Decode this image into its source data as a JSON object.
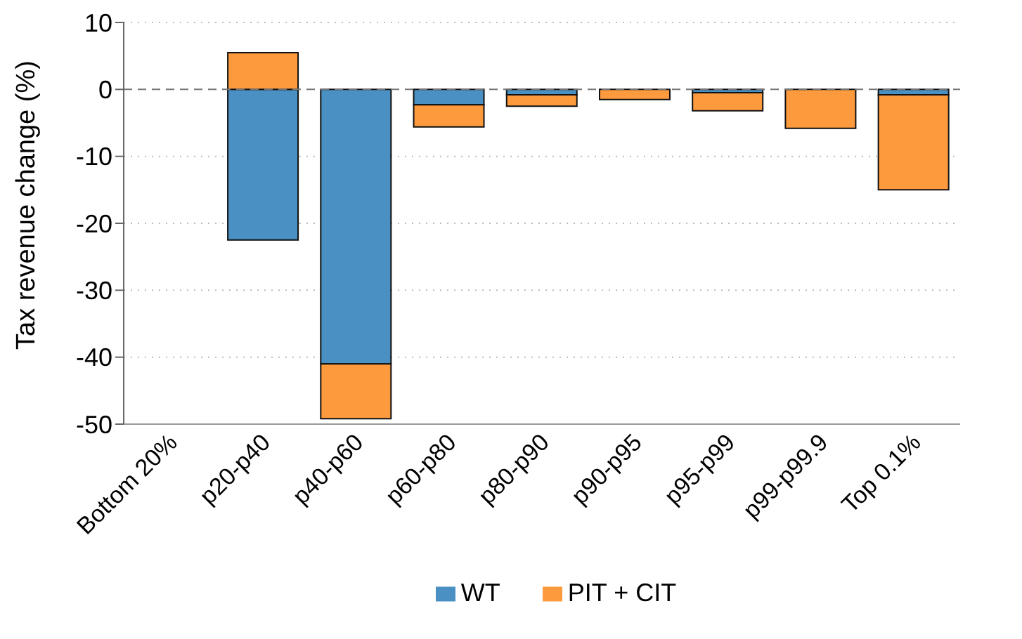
{
  "chart_data": {
    "type": "bar",
    "stacked": true,
    "ylabel": "Tax revenue change (%)",
    "categories": [
      "Bottom 20%",
      "p20-p40",
      "p40-p60",
      "p60-p80",
      "p80-p90",
      "p90-p95",
      "p95-p99",
      "p99-p99.9",
      "Top 0.1%"
    ],
    "series": [
      {
        "name": "WT",
        "color": "#4a90c2",
        "values": [
          null,
          -22.5,
          -41,
          -2.3,
          -0.8,
          null,
          -0.5,
          null,
          -0.8
        ]
      },
      {
        "name": "PIT + CIT",
        "color": "#fd9a3e",
        "values": [
          null,
          5.5,
          -8.2,
          -3.3,
          -1.7,
          -1.5,
          -2.7,
          -5.8,
          -14.2
        ]
      }
    ],
    "ylim": [
      -50,
      10
    ],
    "yticks": [
      -50,
      -40,
      -30,
      -20,
      -10,
      0,
      10
    ],
    "grid": "y",
    "legend": "bottom",
    "ref_lines": [
      {
        "axis": "y",
        "value": 0,
        "color": "#777777",
        "line_style": "dashed"
      }
    ]
  }
}
